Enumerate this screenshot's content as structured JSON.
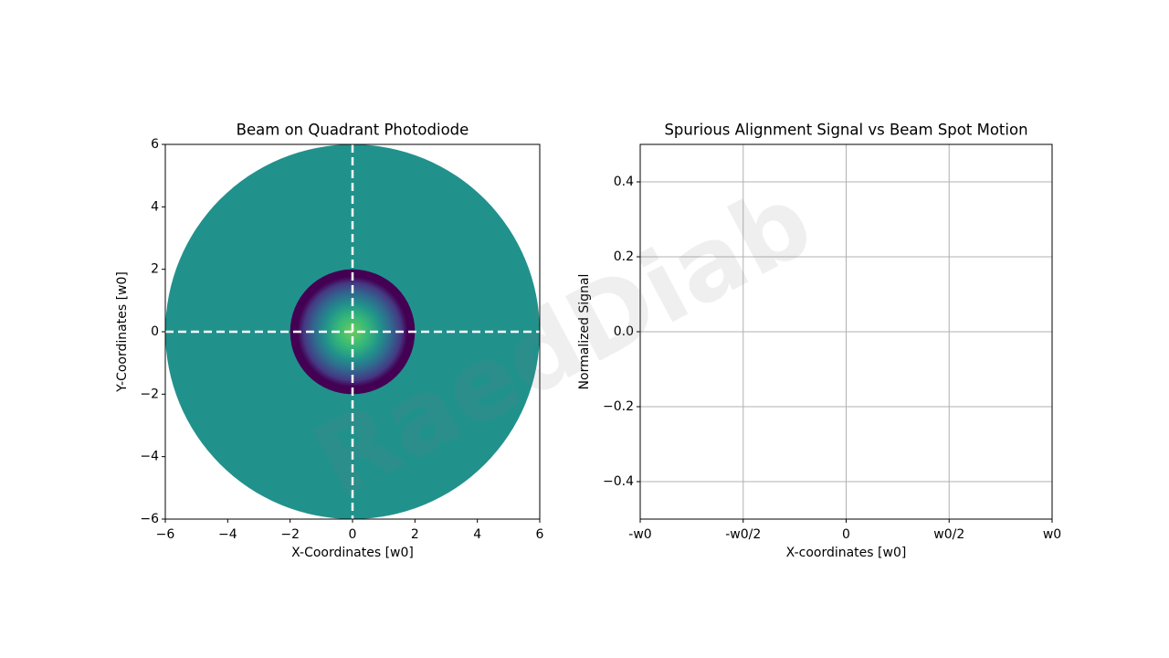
{
  "watermark": "RaedDiab",
  "chart_data": [
    {
      "type": "image",
      "title": "Beam on Quadrant Photodiode",
      "xlabel": "X-Coordinates [w0]",
      "ylabel": "Y-Coordinates [w0]",
      "xlim": [
        -6,
        6
      ],
      "ylim": [
        -6,
        6
      ],
      "xticks": [
        {
          "value": -6,
          "label": "−6"
        },
        {
          "value": -4,
          "label": "−4"
        },
        {
          "value": -2,
          "label": "−2"
        },
        0,
        2,
        4,
        6
      ],
      "yticks": [
        {
          "value": -6,
          "label": "−6"
        },
        {
          "value": -4,
          "label": "−4"
        },
        {
          "value": -2,
          "label": "−2"
        },
        0,
        2,
        4,
        6
      ],
      "detector_radius": 6,
      "detector_color": "#21918c",
      "beam_radius": 2,
      "beam_colors": [
        "#6ccd5a",
        "#35b779",
        "#21918c",
        "#31688e",
        "#443983",
        "#440154"
      ],
      "quadrant_lines": {
        "x": 0,
        "y": 0
      },
      "line_color": "#ffffff",
      "grid": false
    },
    {
      "type": "line",
      "title": "Spurious Alignment Signal vs Beam Spot Motion",
      "xlabel": "X-coordinates [w0]",
      "ylabel": "Normalized Signal",
      "xlim": [
        -1,
        1
      ],
      "ylim": [
        -0.5,
        0.5
      ],
      "xticks": [
        {
          "value": -1,
          "label": "-w0"
        },
        {
          "value": -0.5,
          "label": "-w0/2"
        },
        0,
        {
          "value": 0.5,
          "label": "w0/2"
        },
        {
          "value": 1,
          "label": "w0"
        }
      ],
      "yticks": [
        {
          "value": -0.4,
          "label": "−0.4"
        },
        {
          "value": -0.2,
          "label": "−0.2"
        },
        {
          "value": 0,
          "label": "0.0"
        },
        {
          "value": 0.2,
          "label": "0.2"
        },
        {
          "value": 0.4,
          "label": "0.4"
        }
      ],
      "series": [],
      "grid": true
    }
  ]
}
